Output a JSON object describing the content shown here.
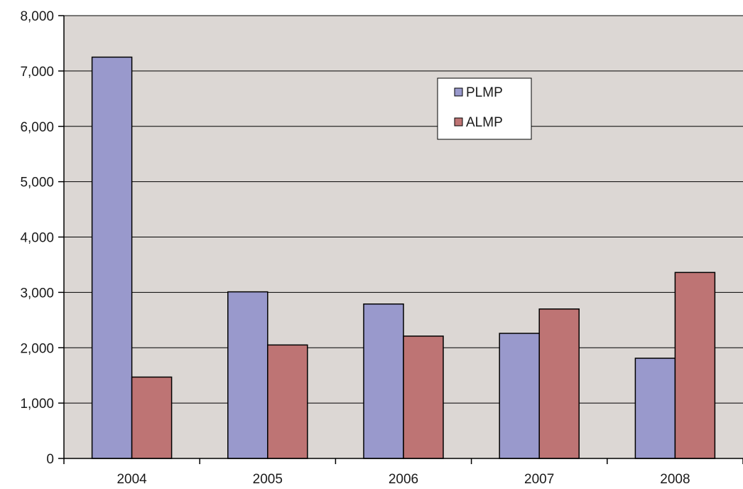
{
  "chart_data": {
    "type": "bar",
    "categories": [
      "2004",
      "2005",
      "2006",
      "2007",
      "2008"
    ],
    "series": [
      {
        "name": "PLMP",
        "values": [
          7250,
          3010,
          2790,
          2260,
          1810
        ],
        "color": "#9999cc"
      },
      {
        "name": "ALMP",
        "values": [
          1470,
          2050,
          2210,
          2700,
          3360
        ],
        "color": "#be7474"
      }
    ],
    "ylim": [
      0,
      8000
    ],
    "y_ticks": [
      0,
      1000,
      2000,
      3000,
      4000,
      5000,
      6000,
      7000,
      8000
    ],
    "y_tick_labels": [
      "0",
      "1,000",
      "2,000",
      "3,000",
      "4,000",
      "5,000",
      "6,000",
      "7,000",
      "8,000"
    ],
    "title": "",
    "xlabel": "",
    "ylabel": "",
    "grid": true,
    "legend_position": "top-center-right",
    "plot_background": "#dcd7d4"
  }
}
